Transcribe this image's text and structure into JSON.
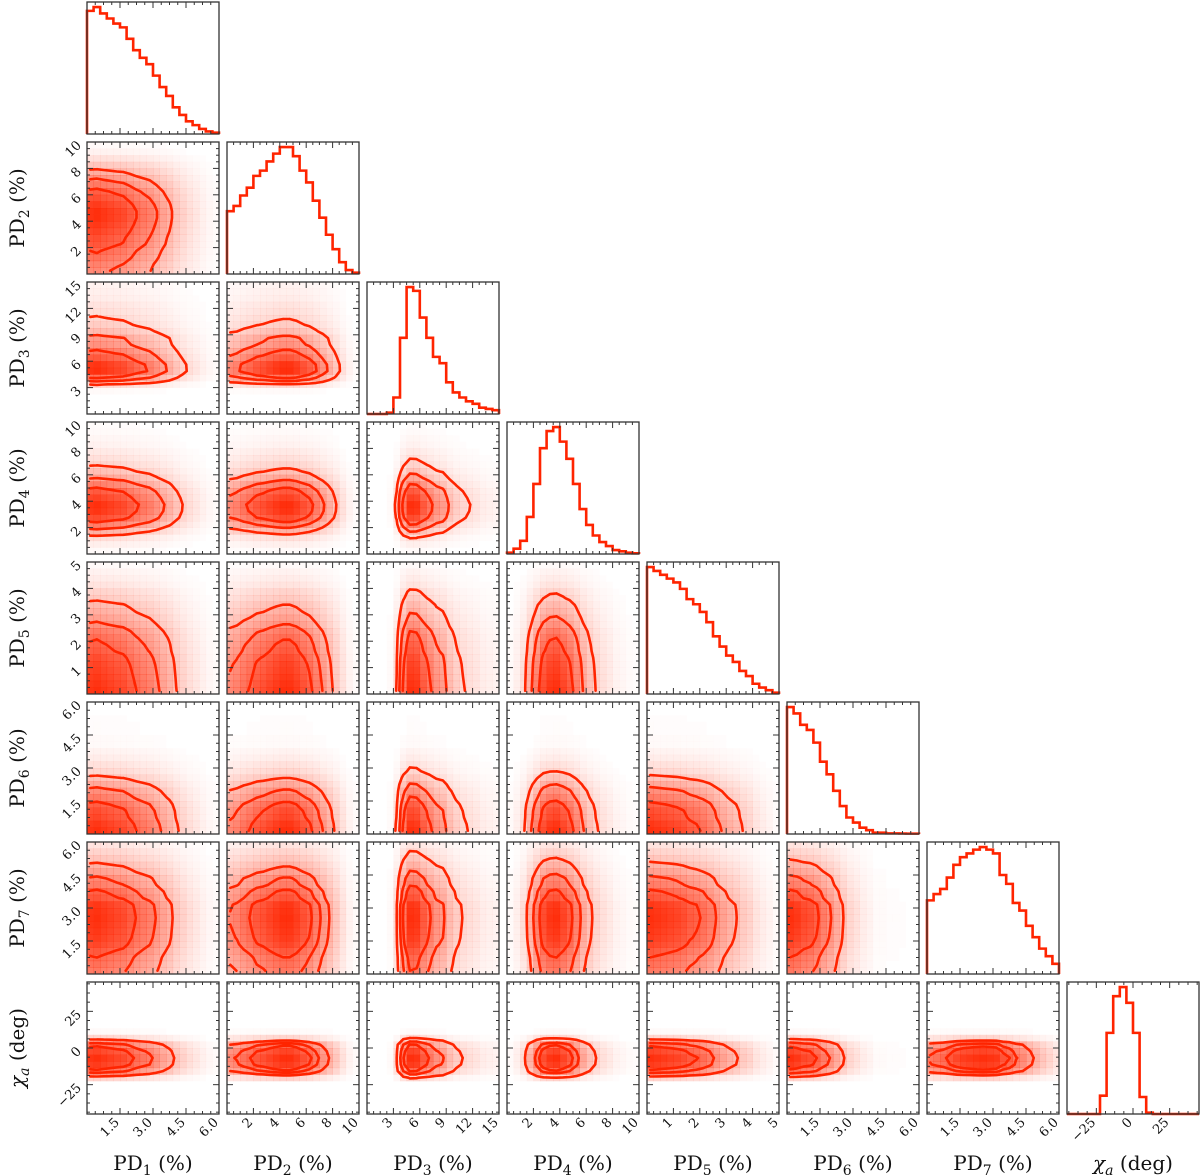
{
  "chart_data": {
    "type": "corner",
    "color": "#ff2400",
    "contour_mass_levels": [
      0.393,
      0.675,
      0.864
    ],
    "parameters": [
      {
        "label": {
          "main": "PD",
          "sub": "1",
          "unit": " (%)"
        },
        "range": [
          0,
          6
        ],
        "ticks": [
          1.5,
          3.0,
          4.5,
          6.0
        ],
        "tick_labels": [
          "1.5",
          "3.0",
          "4.5",
          "6.0"
        ],
        "histogram": [
          0.97,
          1.0,
          0.95,
          0.91,
          0.87,
          0.84,
          0.75,
          0.66,
          0.6,
          0.55,
          0.46,
          0.37,
          0.3,
          0.21,
          0.15,
          0.1,
          0.07,
          0.04,
          0.02,
          0.01
        ]
      },
      {
        "label": {
          "main": "PD",
          "sub": "2",
          "unit": " (%)"
        },
        "range": [
          0,
          10
        ],
        "ticks": [
          2,
          4,
          6,
          8,
          10
        ],
        "tick_labels": [
          "2",
          "4",
          "6",
          "8",
          "10"
        ],
        "histogram": [
          0.48,
          0.52,
          0.6,
          0.66,
          0.75,
          0.79,
          0.86,
          0.92,
          0.97,
          0.97,
          0.9,
          0.79,
          0.7,
          0.56,
          0.43,
          0.3,
          0.19,
          0.09,
          0.03,
          0.01
        ]
      },
      {
        "label": {
          "main": "PD",
          "sub": "3",
          "unit": " (%)"
        },
        "range": [
          0,
          15
        ],
        "ticks": [
          3,
          6,
          9,
          12,
          15
        ],
        "tick_labels": [
          "3",
          "6",
          "9",
          "12",
          "15"
        ],
        "histogram": [
          0,
          0,
          0,
          0.01,
          0.13,
          0.6,
          1.0,
          0.97,
          0.76,
          0.6,
          0.45,
          0.4,
          0.25,
          0.17,
          0.13,
          0.1,
          0.08,
          0.05,
          0.04,
          0.03
        ]
      },
      {
        "label": {
          "main": "PD",
          "sub": "4",
          "unit": " (%)"
        },
        "range": [
          0,
          10
        ],
        "ticks": [
          2,
          4,
          6,
          8,
          10
        ],
        "tick_labels": [
          "2",
          "4",
          "6",
          "8",
          "10"
        ],
        "histogram": [
          0.01,
          0.04,
          0.1,
          0.28,
          0.53,
          0.8,
          0.93,
          0.96,
          0.85,
          0.72,
          0.53,
          0.34,
          0.22,
          0.14,
          0.09,
          0.06,
          0.03,
          0.02,
          0.01,
          0.005
        ]
      },
      {
        "label": {
          "main": "PD",
          "sub": "5",
          "unit": " (%)"
        },
        "range": [
          0,
          5
        ],
        "ticks": [
          1,
          2,
          3,
          4,
          5
        ],
        "tick_labels": [
          "1",
          "2",
          "3",
          "4",
          "5"
        ],
        "histogram": [
          0.99,
          0.96,
          0.93,
          0.9,
          0.87,
          0.82,
          0.74,
          0.7,
          0.64,
          0.56,
          0.45,
          0.37,
          0.3,
          0.25,
          0.18,
          0.14,
          0.08,
          0.05,
          0.03,
          0.01
        ]
      },
      {
        "label": {
          "main": "PD",
          "sub": "6",
          "unit": " (%)"
        },
        "range": [
          0,
          6
        ],
        "ticks": [
          1.5,
          3.0,
          4.5,
          6.0
        ],
        "tick_labels": [
          "1.5",
          "3.0",
          "4.5",
          "6.0"
        ],
        "histogram": [
          1.0,
          0.95,
          0.86,
          0.82,
          0.72,
          0.57,
          0.47,
          0.34,
          0.22,
          0.13,
          0.09,
          0.05,
          0.03,
          0.01,
          0.01,
          0.005,
          0.005,
          0.004,
          0.003,
          0.003
        ]
      },
      {
        "label": {
          "main": "PD",
          "sub": "7",
          "unit": " (%)"
        },
        "range": [
          0,
          6
        ],
        "ticks": [
          1.5,
          3.0,
          4.5,
          6.0
        ],
        "tick_labels": [
          "1.5",
          "3.0",
          "4.5",
          "6.0"
        ],
        "histogram": [
          0.58,
          0.63,
          0.67,
          0.76,
          0.86,
          0.92,
          0.95,
          0.98,
          1.0,
          0.98,
          0.95,
          0.78,
          0.71,
          0.56,
          0.5,
          0.38,
          0.29,
          0.2,
          0.14,
          0.08
        ]
      },
      {
        "label": {
          "main": "χ",
          "sub": "a",
          "unit": " (deg)"
        },
        "range": [
          -45,
          45
        ],
        "ticks": [
          -25,
          0,
          25
        ],
        "tick_labels": [
          "−25",
          "0",
          "25"
        ],
        "histogram": [
          0,
          0,
          0,
          0,
          0,
          0.14,
          0.62,
          0.9,
          0.97,
          0.85,
          0.62,
          0.13,
          0.01,
          0,
          0,
          0,
          0,
          0,
          0,
          0
        ]
      }
    ]
  }
}
